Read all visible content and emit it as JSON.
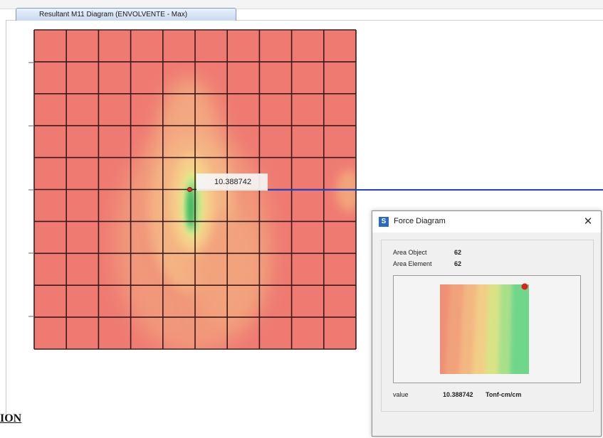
{
  "tab": {
    "title": "Resultant M11 Diagram   (ENVOLVENTE - Max)"
  },
  "callout": {
    "value": "10.388742"
  },
  "page": {
    "partial_heading": "ION"
  },
  "dialog": {
    "title": "Force Diagram",
    "app_icon_letter": "S",
    "close_glyph": "✕",
    "area_object_label": "Area Object",
    "area_object_value": "62",
    "area_element_label": "Area Element",
    "area_element_value": "62",
    "footer_label": "value",
    "footer_value": "10.388742",
    "footer_unit": "Tonf-cm/cm"
  },
  "colors": {
    "mesh_base": "#ef7a72",
    "mesh_lines": "#3a1a1a",
    "probe_line": "#2244cc",
    "probe_dot": "#e53020",
    "tab_border": "#7f9bbf"
  },
  "mesh": {
    "rows": 10,
    "cols": 10
  }
}
